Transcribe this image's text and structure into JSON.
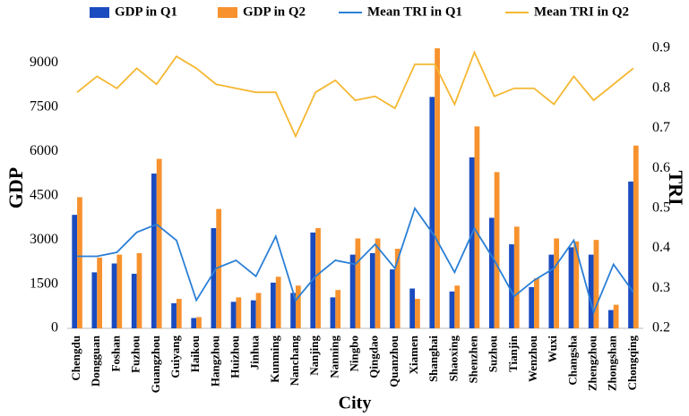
{
  "chart_data": {
    "type": "bar-line",
    "x_label": "City",
    "y_label": "GDP",
    "y2_label": "TRI",
    "categories": [
      "Chengdu",
      "Dongguan",
      "Foshan",
      "Fuzhou",
      "Guangzhou",
      "Guiyang",
      "Haikou",
      "Hangzhou",
      "Huizhou",
      "Jinhua",
      "Kunming",
      "Nanchang",
      "Nanjing",
      "Nanning",
      "Ningbo",
      "Qingdao",
      "Quanzhou",
      "Xiamen",
      "Shanghai",
      "Shaoxing",
      "Shenzhen",
      "Suzhou",
      "Tianjin",
      "Wenzhou",
      "Wuxi",
      "Changsha",
      "Zhengzhou",
      "Zhongshan",
      "Chongqing"
    ],
    "series": [
      {
        "name": "GDP in Q1",
        "kind": "bar",
        "color": "#1a4bbf",
        "values": [
          3850,
          1900,
          2200,
          1850,
          5250,
          850,
          350,
          3400,
          900,
          950,
          1550,
          1200,
          3250,
          1050,
          2500,
          2550,
          2000,
          1350,
          7850,
          1250,
          5800,
          3750,
          2850,
          1400,
          2500,
          2750,
          2500,
          620,
          4980
        ]
      },
      {
        "name": "GDP in Q2",
        "kind": "bar",
        "color": "#f7922e",
        "values": [
          4450,
          2400,
          2500,
          2550,
          5750,
          1000,
          380,
          4050,
          1050,
          1200,
          1750,
          1450,
          3400,
          1300,
          3050,
          3050,
          2700,
          1000,
          9500,
          1450,
          6850,
          5300,
          3450,
          1700,
          3050,
          2950,
          3000,
          800,
          6200
        ]
      },
      {
        "name": "Mean TRI in Q1",
        "kind": "line",
        "axis": "y2",
        "color": "#2a7fd6",
        "values": [
          0.38,
          0.38,
          0.39,
          0.44,
          0.46,
          0.42,
          0.27,
          0.35,
          0.37,
          0.33,
          0.43,
          0.27,
          0.33,
          0.37,
          0.36,
          0.41,
          0.35,
          0.5,
          0.43,
          0.34,
          0.45,
          0.37,
          0.28,
          0.32,
          0.35,
          0.42,
          0.24,
          0.36,
          0.29
        ]
      },
      {
        "name": "Mean TRI in Q2",
        "kind": "line",
        "axis": "y2",
        "color": "#f5b731",
        "values": [
          0.79,
          0.83,
          0.8,
          0.85,
          0.81,
          0.88,
          0.85,
          0.81,
          0.8,
          0.79,
          0.79,
          0.68,
          0.79,
          0.82,
          0.77,
          0.78,
          0.75,
          0.86,
          0.86,
          0.76,
          0.89,
          0.78,
          0.8,
          0.8,
          0.76,
          0.83,
          0.77,
          0.81,
          0.85
        ]
      }
    ],
    "ylim": [
      0,
      9500
    ],
    "yticks": [
      0,
      1500,
      3000,
      4500,
      6000,
      7500,
      9000
    ],
    "y2lim": [
      0.2,
      0.9
    ],
    "y2ticks": [
      0.2,
      0.3,
      0.4,
      0.5,
      0.6,
      0.7,
      0.8,
      0.9
    ],
    "legend": "top",
    "grid": false
  }
}
